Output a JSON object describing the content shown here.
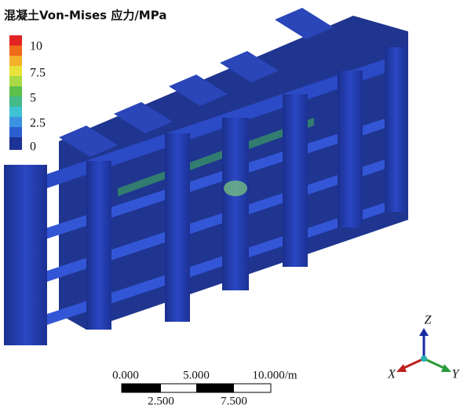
{
  "legend": {
    "title": "混凝土Von-Mises 应力/MPa",
    "ticks": [
      "10",
      "7.5",
      "5",
      "2.5",
      "0"
    ]
  },
  "scale_bar": {
    "top_labels": [
      "0.000",
      "5.000",
      "10.000/m"
    ],
    "bottom_labels": [
      "2.500",
      "7.500"
    ]
  },
  "triad": {
    "z": "Z",
    "x": "X",
    "y": "Y"
  }
}
